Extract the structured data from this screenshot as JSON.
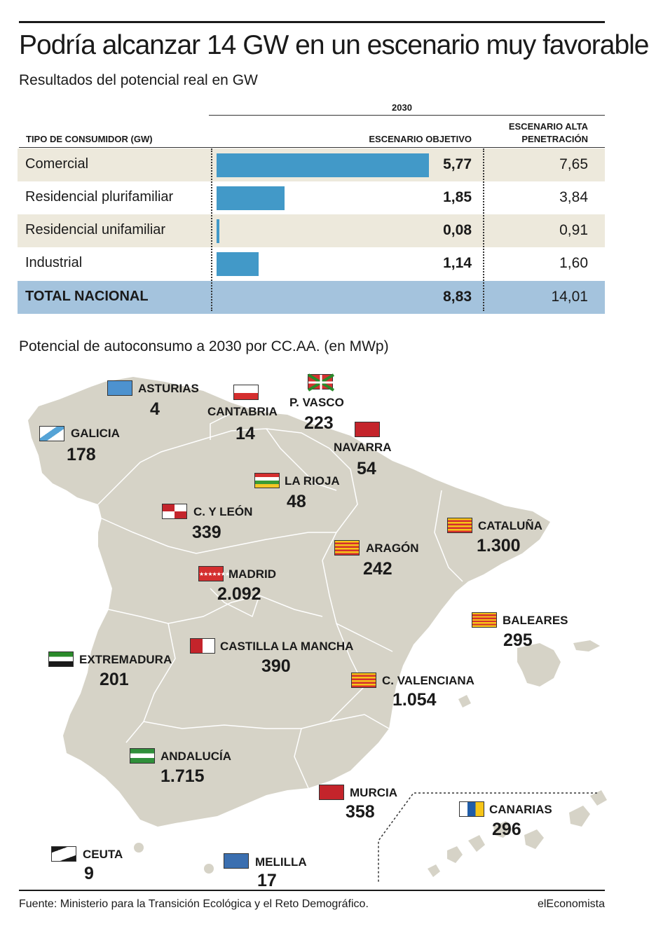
{
  "title": "Podría alcanzar 14 GW en un escenario muy favorable",
  "subtitle": "Resultados del potencial real en GW",
  "table": {
    "year_header": "2030",
    "col_type": "TIPO DE CONSUMIDOR (GW)",
    "col_obj": "ESCENARIO OBJETIVO",
    "col_alta_1": "ESCENARIO ALTA",
    "col_alta_2": "PENETRACIÓN",
    "rows": [
      {
        "label": "Comercial",
        "objetivo": "5,77",
        "alta": "7,65"
      },
      {
        "label": "Residencial plurifamiliar",
        "objetivo": "1,85",
        "alta": "3,84"
      },
      {
        "label": "Residencial unifamiliar",
        "objetivo": "0,08",
        "alta": "0,91"
      },
      {
        "label": "Industrial",
        "objetivo": "1,14",
        "alta": "1,60"
      },
      {
        "label": "TOTAL NACIONAL",
        "objetivo": "8,83",
        "alta": "14,01"
      }
    ]
  },
  "chart_data": {
    "type": "bar",
    "orientation": "horizontal",
    "categories": [
      "Comercial",
      "Residencial plurifamiliar",
      "Residencial unifamiliar",
      "Industrial"
    ],
    "series": [
      {
        "name": "ESCENARIO OBJETIVO",
        "values": [
          5.77,
          1.85,
          0.08,
          1.14
        ]
      },
      {
        "name": "ESCENARIO ALTA PENETRACIÓN",
        "values": [
          7.65,
          3.84,
          0.91,
          1.6
        ]
      }
    ],
    "totals": {
      "ESCENARIO OBJETIVO": 8.83,
      "ESCENARIO ALTA PENETRACIÓN": 14.01
    },
    "colors": {
      "bar": "#4299c8",
      "total_row": "#a4c3dd",
      "alt_row": "#ede9dc"
    }
  },
  "map_title": "Potencial de autoconsumo a 2030 por CC.AA. (en MWp)",
  "map_data": {
    "type": "choropleth-labels",
    "land_color": "#d6d3c7",
    "regions": [
      {
        "name": "ASTURIAS",
        "value": "4",
        "mwp": 4,
        "flag": "asturias"
      },
      {
        "name": "CANTABRIA",
        "value": "14",
        "mwp": 14,
        "flag": "cantabria"
      },
      {
        "name": "P. VASCO",
        "value": "223",
        "mwp": 223,
        "flag": "pvasco"
      },
      {
        "name": "GALICIA",
        "value": "178",
        "mwp": 178,
        "flag": "galicia"
      },
      {
        "name": "NAVARRA",
        "value": "54",
        "mwp": 54,
        "flag": "navarra"
      },
      {
        "name": "LA RIOJA",
        "value": "48",
        "mwp": 48,
        "flag": "rioja"
      },
      {
        "name": "C. Y LEÓN",
        "value": "339",
        "mwp": 339,
        "flag": "cyleon"
      },
      {
        "name": "CATALUÑA",
        "value": "1.300",
        "mwp": 1300,
        "flag": "cataluna"
      },
      {
        "name": "ARAGÓN",
        "value": "242",
        "mwp": 242,
        "flag": "aragon"
      },
      {
        "name": "MADRID",
        "value": "2.092",
        "mwp": 2092,
        "flag": "madrid"
      },
      {
        "name": "BALEARES",
        "value": "295",
        "mwp": 295,
        "flag": "baleares"
      },
      {
        "name": "CASTILLA LA MANCHA",
        "value": "390",
        "mwp": 390,
        "flag": "clm"
      },
      {
        "name": "EXTREMADURA",
        "value": "201",
        "mwp": 201,
        "flag": "extremadura"
      },
      {
        "name": "C. VALENCIANA",
        "value": "1.054",
        "mwp": 1054,
        "flag": "valencia"
      },
      {
        "name": "ANDALUCÍA",
        "value": "1.715",
        "mwp": 1715,
        "flag": "andalucia"
      },
      {
        "name": "MURCIA",
        "value": "358",
        "mwp": 358,
        "flag": "murcia"
      },
      {
        "name": "CANARIAS",
        "value": "296",
        "mwp": 296,
        "flag": "canarias"
      },
      {
        "name": "CEUTA",
        "value": "9",
        "mwp": 9,
        "flag": "ceuta"
      },
      {
        "name": "MELILLA",
        "value": "17",
        "mwp": 17,
        "flag": "melilla"
      }
    ]
  },
  "source": "Fuente: Ministerio para la Transición Ecológica y el Reto Demográfico.",
  "brand": "elEconomista"
}
